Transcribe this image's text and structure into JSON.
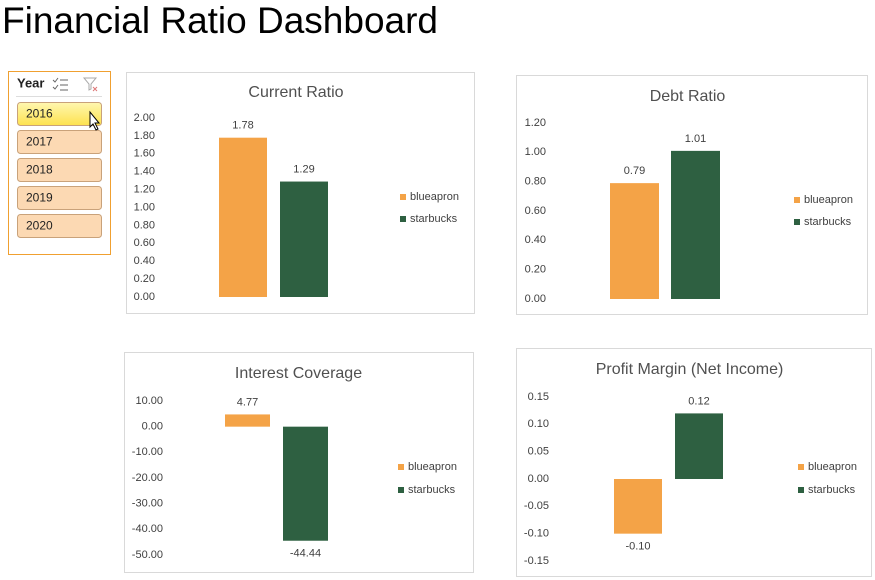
{
  "title": "Financial Ratio Dashboard",
  "slicer": {
    "title": "Year",
    "items": [
      "2016",
      "2017",
      "2018",
      "2019",
      "2020"
    ],
    "selected": 0
  },
  "chart_data": [
    {
      "type": "bar",
      "title": "Current Ratio",
      "grid": false,
      "legend": "right",
      "ylim": [
        0,
        2
      ],
      "yticks": [
        {
          "value": 0,
          "label": "0.00"
        },
        {
          "value": 0.2,
          "label": "0.20"
        },
        {
          "value": 0.4,
          "label": "0.40"
        },
        {
          "value": 0.6,
          "label": "0.60"
        },
        {
          "value": 0.8,
          "label": "0.80"
        },
        {
          "value": 1,
          "label": "1.00"
        },
        {
          "value": 1.2,
          "label": "1.20"
        },
        {
          "value": 1.4,
          "label": "1.40"
        },
        {
          "value": 1.6,
          "label": "1.60"
        },
        {
          "value": 1.8,
          "label": "1.80"
        },
        {
          "value": 2,
          "label": "2.00"
        }
      ],
      "series": [
        {
          "name": "blueapron",
          "color": "#f4a347",
          "values": [
            1.78
          ]
        },
        {
          "name": "starbucks",
          "color": "#2e6041",
          "values": [
            1.29
          ]
        }
      ]
    },
    {
      "type": "bar",
      "title": "Debt Ratio",
      "grid": false,
      "legend": "right",
      "ylim": [
        0,
        1.2
      ],
      "yticks": [
        {
          "value": 0,
          "label": "0.00"
        },
        {
          "value": 0.2,
          "label": "0.20"
        },
        {
          "value": 0.4,
          "label": "0.40"
        },
        {
          "value": 0.6,
          "label": "0.60"
        },
        {
          "value": 0.8,
          "label": "0.80"
        },
        {
          "value": 1,
          "label": "1.00"
        },
        {
          "value": 1.2,
          "label": "1.20"
        }
      ],
      "series": [
        {
          "name": "blueapron",
          "color": "#f4a347",
          "values": [
            0.79
          ]
        },
        {
          "name": "starbucks",
          "color": "#2e6041",
          "values": [
            1.01
          ]
        }
      ]
    },
    {
      "type": "bar",
      "title": "Interest Coverage",
      "grid": false,
      "legend": "right",
      "ylim": [
        -50,
        10
      ],
      "yticks": [
        {
          "value": -50,
          "label": "-50.00"
        },
        {
          "value": -40,
          "label": "-40.00"
        },
        {
          "value": -30,
          "label": "-30.00"
        },
        {
          "value": -20,
          "label": "-20.00"
        },
        {
          "value": -10,
          "label": "-10.00"
        },
        {
          "value": 0,
          "label": "0.00"
        },
        {
          "value": 10,
          "label": "10.00"
        }
      ],
      "series": [
        {
          "name": "blueapron",
          "color": "#f4a347",
          "values": [
            4.77
          ]
        },
        {
          "name": "starbucks",
          "color": "#2e6041",
          "values": [
            -44.44
          ]
        }
      ]
    },
    {
      "type": "bar",
      "title": "Profit Margin (Net Income)",
      "grid": false,
      "legend": "right",
      "ylim": [
        -0.15,
        0.15
      ],
      "yticks": [
        {
          "value": -0.15,
          "label": "-0.15"
        },
        {
          "value": -0.1,
          "label": "-0.10"
        },
        {
          "value": -0.05,
          "label": "-0.05"
        },
        {
          "value": 0,
          "label": "0.00"
        },
        {
          "value": 0.05,
          "label": "0.05"
        },
        {
          "value": 0.1,
          "label": "0.10"
        },
        {
          "value": 0.15,
          "label": "0.15"
        }
      ],
      "series": [
        {
          "name": "blueapron",
          "color": "#f4a347",
          "values": [
            -0.1
          ],
          "value_labels": [
            "-0.10"
          ]
        },
        {
          "name": "starbucks",
          "color": "#2e6041",
          "values": [
            0.12
          ]
        }
      ]
    }
  ]
}
